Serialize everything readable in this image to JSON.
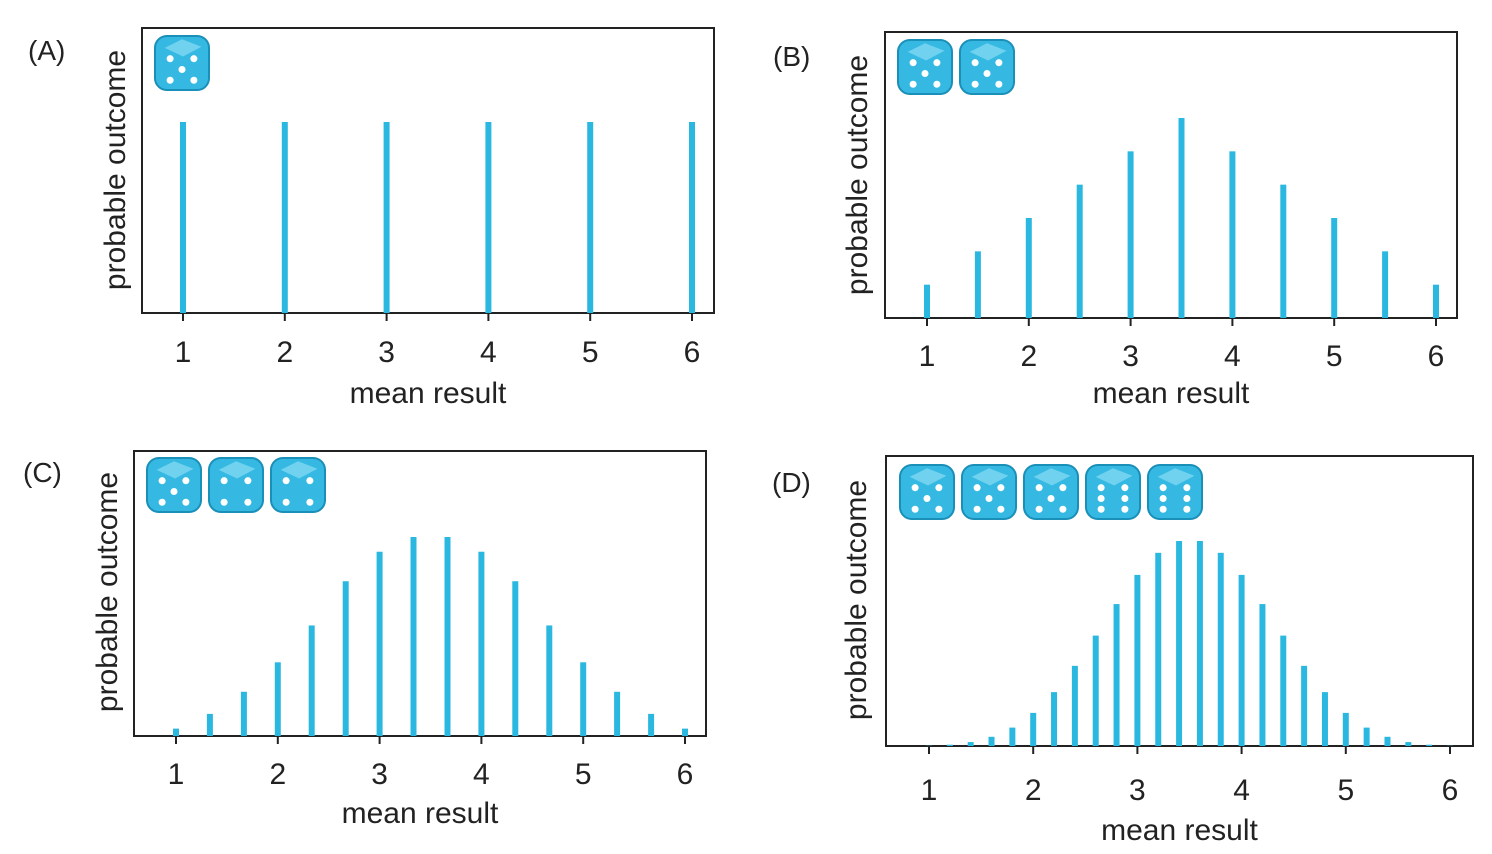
{
  "colors": {
    "bar": "#2bb8e0",
    "axes": "#222222",
    "die": "#35b9e3",
    "die_dark": "#1a8fb8",
    "pip": "#ffffff"
  },
  "chart_data": [
    {
      "type": "bar",
      "panel_label": "(A)",
      "dice_count": 1,
      "dice_icons": [
        "die-icon"
      ],
      "xlabel": "mean result",
      "ylabel": "probable outcome",
      "xlim": [
        1,
        6
      ],
      "xticks": [
        "1",
        "2",
        "3",
        "4",
        "5",
        "6"
      ],
      "x": [
        1,
        2,
        3,
        4,
        5,
        6
      ],
      "values": [
        1,
        1,
        1,
        1,
        1,
        1
      ]
    },
    {
      "type": "bar",
      "panel_label": "(B)",
      "dice_count": 2,
      "dice_icons": [
        "die-icon",
        "die-icon"
      ],
      "xlabel": "mean result",
      "ylabel": "probable outcome",
      "xlim": [
        1,
        6
      ],
      "xticks": [
        "1",
        "2",
        "3",
        "4",
        "5",
        "6"
      ],
      "x": [
        1,
        1.5,
        2,
        2.5,
        3,
        3.5,
        4,
        4.5,
        5,
        5.5,
        6
      ],
      "values": [
        1,
        2,
        3,
        4,
        5,
        6,
        5,
        4,
        3,
        2,
        1
      ]
    },
    {
      "type": "bar",
      "panel_label": "(C)",
      "dice_count": 3,
      "dice_icons": [
        "die-icon",
        "die-icon",
        "die-icon"
      ],
      "xlabel": "mean result",
      "ylabel": "probable outcome",
      "xlim": [
        1,
        6
      ],
      "xticks": [
        "1",
        "2",
        "3",
        "4",
        "5",
        "6"
      ],
      "x": [
        1,
        1.333,
        1.667,
        2,
        2.333,
        2.667,
        3,
        3.333,
        3.667,
        4,
        4.333,
        4.667,
        5,
        5.333,
        5.667,
        6
      ],
      "values": [
        1,
        3,
        6,
        10,
        15,
        21,
        25,
        27,
        27,
        25,
        21,
        15,
        10,
        6,
        3,
        1
      ]
    },
    {
      "type": "bar",
      "panel_label": "(D)",
      "dice_count": 5,
      "dice_icons": [
        "die-icon",
        "die-icon",
        "die-icon",
        "die-icon",
        "die-icon"
      ],
      "xlabel": "mean result",
      "ylabel": "probable outcome",
      "xlim": [
        1,
        6
      ],
      "xticks": [
        "1",
        "2",
        "3",
        "4",
        "5",
        "6"
      ],
      "x": [
        1,
        1.2,
        1.4,
        1.6,
        1.8,
        2,
        2.2,
        2.4,
        2.6,
        2.8,
        3,
        3.2,
        3.4,
        3.6,
        3.8,
        4,
        4.2,
        4.4,
        4.6,
        4.8,
        5,
        5.2,
        5.4,
        5.6,
        5.8,
        6
      ],
      "values": [
        1,
        5,
        15,
        35,
        70,
        126,
        205,
        305,
        420,
        540,
        651,
        735,
        780,
        780,
        735,
        651,
        540,
        420,
        305,
        205,
        126,
        70,
        35,
        15,
        5,
        1
      ]
    }
  ]
}
